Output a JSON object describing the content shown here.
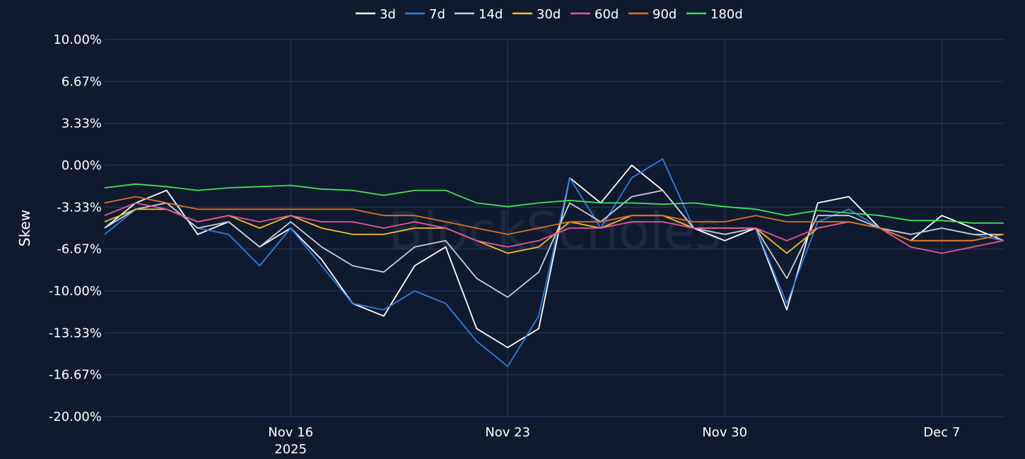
{
  "chart_data": {
    "type": "line",
    "ylabel": "Skew",
    "watermark": "BlockScholes",
    "x_start": "2025-11-10",
    "x_end": "2025-12-09",
    "x_ticks": [
      {
        "date": "2025-11-16",
        "label": "Nov 16",
        "sublabel": "2025"
      },
      {
        "date": "2025-11-23",
        "label": "Nov 23"
      },
      {
        "date": "2025-11-30",
        "label": "Nov 30"
      },
      {
        "date": "2025-12-07",
        "label": "Dec 7"
      }
    ],
    "ylim": [
      -20,
      10
    ],
    "y_ticks": [
      10,
      6.67,
      3.33,
      0,
      -3.33,
      -6.67,
      -10,
      -13.33,
      -16.67,
      -20
    ],
    "y_tick_labels": [
      "10.00%",
      "6.67%",
      "3.33%",
      "0.00%",
      "-3.33%",
      "-6.67%",
      "-10.00%",
      "-13.33%",
      "-16.67%",
      "-20.00%"
    ],
    "grid": true,
    "legend_position": "top-center",
    "series": [
      {
        "name": "3d",
        "color": "#ffffff",
        "x": [
          "2025-11-10",
          "2025-11-11",
          "2025-11-12",
          "2025-11-13",
          "2025-11-14",
          "2025-11-15",
          "2025-11-16",
          "2025-11-17",
          "2025-11-18",
          "2025-11-19",
          "2025-11-20",
          "2025-11-21",
          "2025-11-22",
          "2025-11-23",
          "2025-11-24",
          "2025-11-25",
          "2025-11-26",
          "2025-11-27",
          "2025-11-28",
          "2025-11-29",
          "2025-11-30",
          "2025-12-01",
          "2025-12-02",
          "2025-12-03",
          "2025-12-04",
          "2025-12-05",
          "2025-12-06",
          "2025-12-07",
          "2025-12-08",
          "2025-12-09"
        ],
        "values": [
          -5.0,
          -3.0,
          -2.0,
          -5.5,
          -4.5,
          -6.5,
          -5.0,
          -7.5,
          -11.0,
          -12.0,
          -8.0,
          -6.5,
          -13.0,
          -14.5,
          -13.0,
          -1.0,
          -3.0,
          0.0,
          -2.0,
          -5.0,
          -6.0,
          -5.0,
          -11.5,
          -3.0,
          -2.5,
          -5.0,
          -6.0,
          -4.0,
          -5.0,
          -6.0
        ]
      },
      {
        "name": "7d",
        "color": "#2f7de1",
        "x": [
          "2025-11-10",
          "2025-11-11",
          "2025-11-12",
          "2025-11-13",
          "2025-11-14",
          "2025-11-15",
          "2025-11-16",
          "2025-11-17",
          "2025-11-18",
          "2025-11-19",
          "2025-11-20",
          "2025-11-21",
          "2025-11-22",
          "2025-11-23",
          "2025-11-24",
          "2025-11-25",
          "2025-11-26",
          "2025-11-27",
          "2025-11-28",
          "2025-11-29",
          "2025-11-30",
          "2025-12-01",
          "2025-12-02",
          "2025-12-03",
          "2025-12-04",
          "2025-12-05",
          "2025-12-06",
          "2025-12-07",
          "2025-12-08",
          "2025-12-09"
        ],
        "values": [
          -5.5,
          -3.5,
          -3.0,
          -5.0,
          -5.5,
          -8.0,
          -5.0,
          -8.0,
          -11.0,
          -11.5,
          -10.0,
          -11.0,
          -14.0,
          -16.0,
          -12.0,
          -1.0,
          -5.0,
          -1.0,
          0.5,
          -5.0,
          -5.5,
          -5.0,
          -11.0,
          -4.5,
          -3.5,
          -5.0,
          -5.5,
          -5.0,
          -5.5,
          -6.0
        ]
      },
      {
        "name": "14d",
        "color": "#c9cdd6",
        "x": [
          "2025-11-10",
          "2025-11-11",
          "2025-11-12",
          "2025-11-13",
          "2025-11-14",
          "2025-11-15",
          "2025-11-16",
          "2025-11-17",
          "2025-11-18",
          "2025-11-19",
          "2025-11-20",
          "2025-11-21",
          "2025-11-22",
          "2025-11-23",
          "2025-11-24",
          "2025-11-25",
          "2025-11-26",
          "2025-11-27",
          "2025-11-28",
          "2025-11-29",
          "2025-11-30",
          "2025-12-01",
          "2025-12-02",
          "2025-12-03",
          "2025-12-04",
          "2025-12-05",
          "2025-12-06",
          "2025-12-07",
          "2025-12-08",
          "2025-12-09"
        ],
        "values": [
          -5.0,
          -3.5,
          -3.0,
          -5.0,
          -4.5,
          -6.5,
          -4.5,
          -6.5,
          -8.0,
          -8.5,
          -6.5,
          -6.0,
          -9.0,
          -10.5,
          -8.5,
          -3.0,
          -4.5,
          -2.5,
          -2.0,
          -5.0,
          -5.5,
          -5.0,
          -9.0,
          -4.0,
          -4.0,
          -5.0,
          -5.5,
          -5.0,
          -5.5,
          -5.5
        ]
      },
      {
        "name": "30d",
        "color": "#f0c020",
        "x": [
          "2025-11-10",
          "2025-11-11",
          "2025-11-12",
          "2025-11-13",
          "2025-11-14",
          "2025-11-15",
          "2025-11-16",
          "2025-11-17",
          "2025-11-18",
          "2025-11-19",
          "2025-11-20",
          "2025-11-21",
          "2025-11-22",
          "2025-11-23",
          "2025-11-24",
          "2025-11-25",
          "2025-11-26",
          "2025-11-27",
          "2025-11-28",
          "2025-11-29",
          "2025-11-30",
          "2025-12-01",
          "2025-12-02",
          "2025-12-03",
          "2025-12-04",
          "2025-12-05",
          "2025-12-06",
          "2025-12-07",
          "2025-12-08",
          "2025-12-09"
        ],
        "values": [
          -4.5,
          -3.5,
          -3.5,
          -4.5,
          -4.0,
          -5.0,
          -4.0,
          -5.0,
          -5.5,
          -5.5,
          -5.0,
          -5.0,
          -6.0,
          -7.0,
          -6.5,
          -4.5,
          -5.0,
          -4.0,
          -4.0,
          -5.0,
          -5.0,
          -5.0,
          -7.0,
          -5.0,
          -4.5,
          -5.0,
          -6.0,
          -6.0,
          -6.0,
          -5.5
        ]
      },
      {
        "name": "60d",
        "color": "#e8559a",
        "x": [
          "2025-11-10",
          "2025-11-11",
          "2025-11-12",
          "2025-11-13",
          "2025-11-14",
          "2025-11-15",
          "2025-11-16",
          "2025-11-17",
          "2025-11-18",
          "2025-11-19",
          "2025-11-20",
          "2025-11-21",
          "2025-11-22",
          "2025-11-23",
          "2025-11-24",
          "2025-11-25",
          "2025-11-26",
          "2025-11-27",
          "2025-11-28",
          "2025-11-29",
          "2025-11-30",
          "2025-12-01",
          "2025-12-02",
          "2025-12-03",
          "2025-12-04",
          "2025-12-05",
          "2025-12-06",
          "2025-12-07",
          "2025-12-08",
          "2025-12-09"
        ],
        "values": [
          -4.0,
          -3.0,
          -3.5,
          -4.5,
          -4.0,
          -4.5,
          -4.0,
          -4.5,
          -4.5,
          -5.0,
          -4.5,
          -5.0,
          -6.0,
          -6.5,
          -6.0,
          -5.0,
          -5.0,
          -4.5,
          -4.5,
          -5.0,
          -5.0,
          -5.0,
          -6.0,
          -5.0,
          -4.5,
          -5.0,
          -6.5,
          -7.0,
          -6.5,
          -6.0
        ]
      },
      {
        "name": "90d",
        "color": "#e0711d",
        "x": [
          "2025-11-10",
          "2025-11-11",
          "2025-11-12",
          "2025-11-13",
          "2025-11-14",
          "2025-11-15",
          "2025-11-16",
          "2025-11-17",
          "2025-11-18",
          "2025-11-19",
          "2025-11-20",
          "2025-11-21",
          "2025-11-22",
          "2025-11-23",
          "2025-11-24",
          "2025-11-25",
          "2025-11-26",
          "2025-11-27",
          "2025-11-28",
          "2025-11-29",
          "2025-11-30",
          "2025-12-01",
          "2025-12-02",
          "2025-12-03",
          "2025-12-04",
          "2025-12-05",
          "2025-12-06",
          "2025-12-07",
          "2025-12-08",
          "2025-12-09"
        ],
        "values": [
          -3.0,
          -2.5,
          -3.0,
          -3.5,
          -3.5,
          -3.5,
          -3.5,
          -3.5,
          -3.5,
          -4.0,
          -4.0,
          -4.5,
          -5.0,
          -5.5,
          -5.0,
          -4.5,
          -4.5,
          -4.0,
          -4.0,
          -4.5,
          -4.5,
          -4.0,
          -4.5,
          -4.5,
          -4.5,
          -5.0,
          -6.0,
          -6.0,
          -6.0,
          -5.5
        ]
      },
      {
        "name": "180d",
        "color": "#3fe05a",
        "x": [
          "2025-11-10",
          "2025-11-11",
          "2025-11-12",
          "2025-11-13",
          "2025-11-14",
          "2025-11-15",
          "2025-11-16",
          "2025-11-17",
          "2025-11-18",
          "2025-11-19",
          "2025-11-20",
          "2025-11-21",
          "2025-11-22",
          "2025-11-23",
          "2025-11-24",
          "2025-11-25",
          "2025-11-26",
          "2025-11-27",
          "2025-11-28",
          "2025-11-29",
          "2025-11-30",
          "2025-12-01",
          "2025-12-02",
          "2025-12-03",
          "2025-12-04",
          "2025-12-05",
          "2025-12-06",
          "2025-12-07",
          "2025-12-08",
          "2025-12-09"
        ],
        "values": [
          -1.8,
          -1.5,
          -1.7,
          -2.0,
          -1.8,
          -1.7,
          -1.6,
          -1.9,
          -2.0,
          -2.4,
          -2.0,
          -2.0,
          -3.0,
          -3.3,
          -3.0,
          -2.8,
          -3.0,
          -3.0,
          -3.1,
          -3.0,
          -3.3,
          -3.5,
          -4.0,
          -3.6,
          -3.8,
          -4.0,
          -4.4,
          -4.4,
          -4.6,
          -4.6
        ]
      }
    ]
  }
}
